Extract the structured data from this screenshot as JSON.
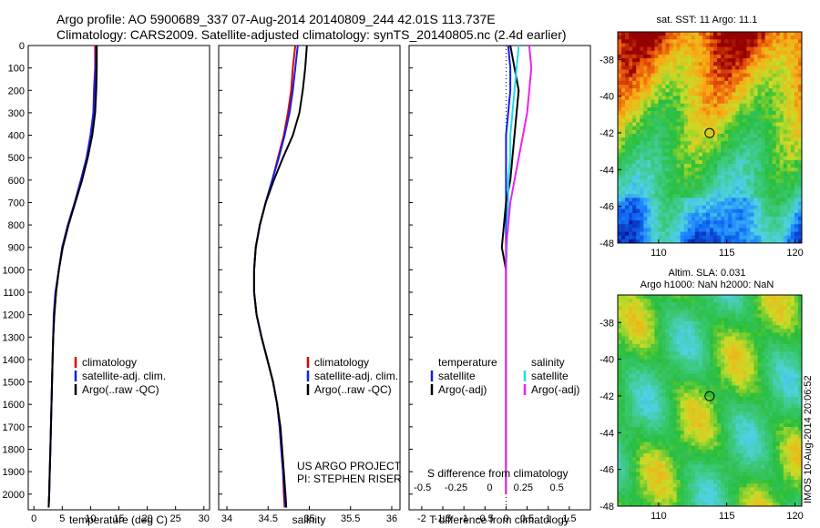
{
  "header": {
    "line1": "Argo profile: AO 5900689_337 07-Aug-2014 20140809_244 42.01S 113.737E",
    "line2": "Climatology: CARS2009. Satellite-adjusted climatology: synTS_20140805.nc (2.4d earlier)"
  },
  "colors": {
    "climatology": "#dd0000",
    "satellite": "#1020ee",
    "argo": "#000000",
    "sal_satellite": "#22ddee",
    "sal_argo": "#ee22ee"
  },
  "panel_temp": {
    "xlabel": "temperature (deg C)",
    "xticks": [
      "0",
      "5",
      "10",
      "15",
      "20",
      "25",
      "30"
    ],
    "legend": [
      "climatology",
      "satellite-adj. clim.",
      "Argo(..raw -QC)"
    ]
  },
  "panel_sal": {
    "xlabel": "salinity",
    "xticks": [
      "34",
      "34.5",
      "35",
      "35.5",
      "36"
    ],
    "legend": [
      "climatology",
      "satellite-adj. clim.",
      "Argo(..raw -QC)"
    ],
    "credit1": "US ARGO PROJECT",
    "credit2": "PI: STEPHEN RISER"
  },
  "panel_diff": {
    "xlabel": "T difference from climatology",
    "top_axis_label": "S difference from climatology",
    "xticks_bottom": [
      "-2",
      "-1.5",
      "-1",
      "-0.5",
      "0",
      "0.5",
      "1",
      "1.5"
    ],
    "xticks_top": [
      "-0.5",
      "-0.25",
      "0",
      "0.25",
      "0.5"
    ],
    "legend_t_title": "temperature",
    "legend_s_title": "salinity",
    "legend_t": [
      "satellite",
      "Argo(-adj)"
    ],
    "legend_s": [
      "satellite",
      "Argo(-adj)"
    ]
  },
  "yaxis": {
    "ticks": [
      "0",
      "100",
      "200",
      "300",
      "400",
      "500",
      "600",
      "700",
      "800",
      "900",
      "1000",
      "1100",
      "1200",
      "1300",
      "1400",
      "1500",
      "1600",
      "1700",
      "1800",
      "1900",
      "2000"
    ]
  },
  "map_sst": {
    "title": "sat. SST: 11 Argo: 11.1",
    "yticks": [
      "-38",
      "-40",
      "-42",
      "-44",
      "-46",
      "-48"
    ],
    "xticks": [
      "110",
      "115",
      "120"
    ]
  },
  "map_sla": {
    "title1": "Altim. SLA: 0.031",
    "title2": "Argo h1000: NaN h2000: NaN",
    "yticks": [
      "-38",
      "-40",
      "-42",
      "-44",
      "-46",
      "-48"
    ],
    "xticks": [
      "110",
      "115",
      "120"
    ]
  },
  "side_stamp": "IMOS 10-Aug-2014 20:06:52",
  "chart_data": [
    {
      "type": "line",
      "panel": "temperature",
      "xlabel": "temperature (deg C)",
      "xlim": [
        -1,
        31
      ],
      "ylim": [
        2070,
        0
      ],
      "series": [
        {
          "name": "climatology",
          "x": [
            10.8,
            10.8,
            10.6,
            10.5,
            10.0,
            9.3,
            8.3,
            7.2,
            6.0,
            5.0,
            4.4,
            3.9,
            3.6,
            3.4,
            3.3,
            3.2,
            3.1,
            3.0,
            2.9,
            2.8,
            2.7,
            2.6
          ],
          "y": [
            0,
            100,
            200,
            300,
            400,
            500,
            600,
            700,
            800,
            900,
            1000,
            1100,
            1200,
            1300,
            1400,
            1500,
            1600,
            1700,
            1800,
            1900,
            2000,
            2060
          ]
        },
        {
          "name": "satellite-adj. clim.",
          "x": [
            11.0,
            10.9,
            10.7,
            10.5,
            10.0,
            9.3,
            8.3,
            7.2,
            6.0,
            5.0,
            4.4,
            3.8,
            3.5,
            3.4,
            3.3,
            3.2,
            3.1,
            3.0,
            2.9,
            2.8,
            2.7,
            2.6
          ],
          "y": [
            0,
            100,
            200,
            300,
            400,
            500,
            600,
            700,
            800,
            900,
            1000,
            1100,
            1200,
            1300,
            1400,
            1500,
            1600,
            1700,
            1800,
            1900,
            2000,
            2060
          ]
        },
        {
          "name": "Argo(..raw -QC)",
          "x": [
            11.1,
            11.1,
            11.0,
            10.8,
            10.3,
            9.5,
            8.5,
            7.3,
            6.1,
            5.1,
            4.4,
            3.9,
            3.6,
            3.4,
            3.3,
            3.2,
            3.1,
            3.0,
            2.9,
            2.8,
            2.7,
            2.6
          ],
          "y": [
            0,
            100,
            200,
            300,
            400,
            500,
            600,
            700,
            800,
            900,
            1000,
            1100,
            1200,
            1300,
            1400,
            1500,
            1600,
            1700,
            1800,
            1900,
            2000,
            2060
          ]
        }
      ]
    },
    {
      "type": "line",
      "panel": "salinity",
      "xlabel": "salinity",
      "xlim": [
        33.9,
        36.1
      ],
      "ylim": [
        2070,
        0
      ],
      "series": [
        {
          "name": "climatology",
          "x": [
            34.83,
            34.8,
            34.78,
            34.74,
            34.69,
            34.62,
            34.55,
            34.47,
            34.4,
            34.35,
            34.33,
            34.33,
            34.36,
            34.42,
            34.49,
            34.56,
            34.61,
            34.64,
            34.66,
            34.68,
            34.69,
            34.7
          ],
          "y": [
            0,
            100,
            200,
            300,
            400,
            500,
            600,
            700,
            800,
            900,
            1000,
            1100,
            1200,
            1300,
            1400,
            1500,
            1600,
            1700,
            1800,
            1900,
            2000,
            2060
          ]
        },
        {
          "name": "satellite-adj. clim.",
          "x": [
            34.86,
            34.83,
            34.8,
            34.76,
            34.7,
            34.63,
            34.55,
            34.47,
            34.4,
            34.35,
            34.33,
            34.33,
            34.36,
            34.42,
            34.49,
            34.56,
            34.61,
            34.64,
            34.66,
            34.68,
            34.7,
            34.71
          ],
          "y": [
            0,
            100,
            200,
            300,
            400,
            500,
            600,
            700,
            800,
            900,
            1000,
            1100,
            1200,
            1300,
            1400,
            1500,
            1600,
            1700,
            1800,
            1900,
            2000,
            2060
          ]
        },
        {
          "name": "Argo(..raw -QC)",
          "x": [
            34.97,
            34.95,
            34.92,
            34.88,
            34.8,
            34.68,
            34.57,
            34.47,
            34.4,
            34.35,
            34.33,
            34.33,
            34.36,
            34.42,
            34.49,
            34.56,
            34.61,
            34.65,
            34.67,
            34.69,
            34.71,
            34.72
          ],
          "y": [
            0,
            100,
            200,
            300,
            400,
            500,
            600,
            700,
            800,
            900,
            1000,
            1100,
            1200,
            1300,
            1400,
            1500,
            1600,
            1700,
            1800,
            1900,
            2000,
            2060
          ]
        }
      ]
    },
    {
      "type": "line",
      "panel": "difference",
      "xlabel": "T difference from climatology",
      "xlim": [
        -2.3,
        2.0
      ],
      "ylim": [
        2070,
        0
      ],
      "series": [
        {
          "name": "temperature satellite",
          "x": [
            0.05,
            0.1,
            0.1,
            0.05,
            0.0,
            0.0,
            0.0,
            0.0,
            0.0,
            0.0,
            0.0,
            0.0,
            0.0,
            0.0,
            0.0,
            0.0,
            0.0,
            0.0,
            0.0,
            0.0,
            0.0
          ],
          "y": [
            0,
            100,
            200,
            300,
            400,
            500,
            600,
            700,
            800,
            900,
            1000,
            1100,
            1200,
            1300,
            1400,
            1500,
            1600,
            1700,
            1800,
            1900,
            2000
          ]
        },
        {
          "name": "temperature Argo(-adj)",
          "x": [
            0.1,
            0.2,
            0.3,
            0.25,
            0.2,
            0.15,
            0.1,
            0.0,
            -0.05,
            -0.1,
            0.0,
            0.0,
            0.0,
            0.0,
            0.0,
            0.0,
            0.0,
            0.0,
            0.0,
            0.0,
            0.0
          ],
          "y": [
            0,
            100,
            200,
            300,
            400,
            500,
            600,
            700,
            800,
            900,
            1000,
            1100,
            1200,
            1300,
            1400,
            1500,
            1600,
            1700,
            1800,
            1900,
            2000
          ]
        },
        {
          "name": "salinity satellite",
          "x": [
            0.3,
            0.25,
            0.2,
            0.15,
            0.1,
            0.1,
            0.05,
            0.05,
            0.03,
            0.02,
            0.0,
            0.0,
            0.0,
            0.0,
            0.0,
            0.0,
            0.0,
            0.0,
            0.0,
            0.0,
            0.0
          ],
          "y": [
            0,
            100,
            200,
            300,
            400,
            500,
            600,
            700,
            800,
            900,
            1000,
            1100,
            1200,
            1300,
            1400,
            1500,
            1600,
            1700,
            1800,
            1900,
            2000
          ]
        },
        {
          "name": "salinity Argo(-adj)",
          "x": [
            0.55,
            0.6,
            0.55,
            0.5,
            0.4,
            0.3,
            0.2,
            0.1,
            0.05,
            0.0,
            0.0,
            0.0,
            0.0,
            0.0,
            0.0,
            0.0,
            0.0,
            0.0,
            0.0,
            0.0,
            0.0
          ],
          "y": [
            0,
            100,
            200,
            300,
            400,
            500,
            600,
            700,
            800,
            900,
            1000,
            1100,
            1200,
            1300,
            1400,
            1500,
            1600,
            1700,
            1800,
            1900,
            2000
          ]
        }
      ]
    },
    {
      "type": "heatmap",
      "panel": "sat. SST map",
      "title": "sat. SST: 11 Argo: 11.1",
      "xlim": [
        107,
        120.5
      ],
      "ylim": [
        -48,
        -36.5
      ],
      "marker": {
        "lon": 113.737,
        "lat": -42.01
      }
    },
    {
      "type": "heatmap",
      "panel": "Altim. SLA map",
      "title": "Altim. SLA: 0.031",
      "xlim": [
        107,
        120.5
      ],
      "ylim": [
        -48,
        -36.5
      ],
      "marker": {
        "lon": 113.737,
        "lat": -42.01
      }
    }
  ]
}
